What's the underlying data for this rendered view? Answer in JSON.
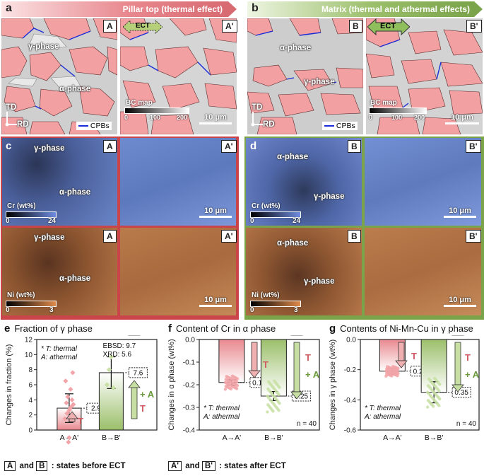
{
  "panel_a": {
    "letter": "a",
    "title": "Pillar top (thermal effect)",
    "tag_left": "A",
    "tag_right": "A'",
    "ect": "ECT",
    "gamma": "γ-phase",
    "alpha": "α-phase",
    "td": "TD",
    "rd": "RD",
    "cpbs": "CPBs",
    "bc_map": "BC map",
    "bc_ticks": [
      "0",
      "100",
      "200"
    ],
    "scale": "10 μm",
    "color_header": "#e8898f"
  },
  "panel_b": {
    "letter": "b",
    "title": "Matrix (thermal and athermal effects)",
    "tag_left": "B",
    "tag_right": "B'",
    "ect": "ECT",
    "alpha": "α-phase",
    "gamma": "γ-phase",
    "td": "TD",
    "rd": "RD",
    "cpbs": "CPBs",
    "bc_map": "BC map",
    "bc_ticks": [
      "0",
      "100",
      "200"
    ],
    "scale": "10 μm",
    "color_header": "#9bbf6a"
  },
  "panel_c": {
    "letter": "c",
    "tag_left": "A",
    "tag_right": "A'",
    "cr_gamma": "γ-phase",
    "cr_alpha": "α-phase",
    "cr_label": "Cr (wt%)",
    "cr_min": "0",
    "cr_max": "24",
    "ni_gamma": "γ-phase",
    "ni_alpha": "α-phase",
    "ni_label": "Ni (wt%)",
    "ni_min": "0",
    "ni_max": "3",
    "scale": "10 μm",
    "frame_color": "#c9454a"
  },
  "panel_d": {
    "letter": "d",
    "tag_left": "B",
    "tag_right": "B'",
    "cr_alpha": "α-phase",
    "cr_gamma": "γ-phase",
    "cr_label": "Cr (wt%)",
    "cr_min": "0",
    "cr_max": "24",
    "ni_alpha": "α-phase",
    "ni_gamma": "γ-phase",
    "ni_label": "Ni (wt%)",
    "ni_min": "0",
    "ni_max": "3",
    "scale": "10 μm",
    "frame_color": "#7aa34a"
  },
  "chart_data": [
    {
      "id": "e",
      "type": "bar",
      "title": "Fraction of γ phase",
      "ylabel": "Changes in fraction (%)",
      "ylim": [
        0,
        12
      ],
      "yticks": [
        0,
        2,
        4,
        6,
        8,
        10,
        12
      ],
      "categories": [
        "A→A'",
        "B→B'"
      ],
      "values": [
        2.9,
        7.6
      ],
      "value_labels": [
        "2.9",
        "7.6"
      ],
      "errors": [
        1.9,
        2.1
      ],
      "scatter": [
        [
          1.5,
          2.2,
          2.6,
          3.1,
          3.4,
          3.6,
          4.0,
          4.4,
          5.4,
          6.5,
          7.6,
          2.8,
          -1.6,
          -1.0
        ],
        [
          6.0,
          8.0,
          9.7,
          5.6
        ]
      ],
      "annotations": [
        "* T: thermal",
        "A: athermal",
        "EBSD: 9.7",
        "XRD: 5.6"
      ],
      "arrow_labels": [
        "T",
        "T",
        "+ A"
      ],
      "colors": [
        "#e8898f",
        "#9bbf6a"
      ]
    },
    {
      "id": "f",
      "type": "bar",
      "title": "Content of Cr in α phase",
      "ylabel": "Changes in α phase (wt%)",
      "ylim": [
        -0.4,
        0.0
      ],
      "yticks": [
        -0.4,
        -0.3,
        -0.2,
        -0.1,
        0.0
      ],
      "categories": [
        "A→A'",
        "B→B'"
      ],
      "values": [
        -0.19,
        -0.25
      ],
      "value_labels": [
        "0.19",
        "0.25"
      ],
      "errors": [
        0.012,
        0.02
      ],
      "n_label": "n = 40",
      "annotations": [
        "* T: thermal",
        "A: athermal"
      ],
      "arrow_labels": [
        "T",
        "T",
        "+ A"
      ],
      "colors": [
        "#e8898f",
        "#9bbf6a"
      ]
    },
    {
      "id": "g",
      "type": "bar",
      "title": "Contents of Ni-Mn-Cu in γ phase",
      "ylabel": "Changes in γ phase (wt%)",
      "ylim": [
        -0.6,
        0.0
      ],
      "yticks": [
        -0.6,
        -0.4,
        -0.2,
        0.0
      ],
      "categories": [
        "A→A'",
        "B→B'"
      ],
      "values": [
        -0.21,
        -0.35
      ],
      "value_labels": [
        "0.21",
        "0.35"
      ],
      "errors": [
        0.02,
        0.07
      ],
      "n_label": "n = 40",
      "annotations": [
        "* T: thermal",
        "A: athermal"
      ],
      "arrow_labels": [
        "T",
        "T",
        "+ A"
      ],
      "colors": [
        "#e8898f",
        "#9bbf6a"
      ]
    }
  ],
  "footnote": {
    "left_a": "A",
    "left_and": "and",
    "left_b": "B",
    "left_text": ": states before ECT",
    "right_a": "A'",
    "right_and": "and",
    "right_b": "B'",
    "right_text": ": states after ECT"
  }
}
